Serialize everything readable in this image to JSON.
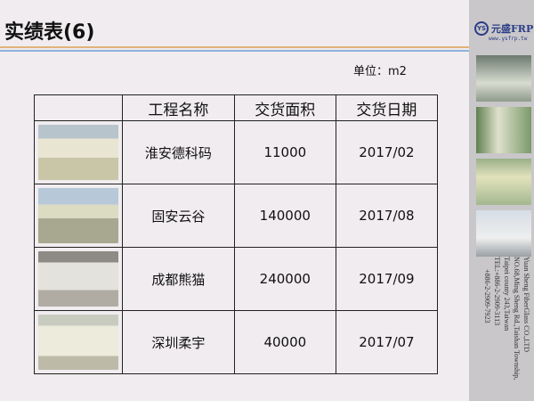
{
  "title": "实绩表(6)",
  "unit": "单位：m2",
  "table": {
    "headers": [
      "",
      "工程名称",
      "交货面积",
      "交货日期"
    ],
    "rows": [
      {
        "name": "淮安德科码",
        "area": "11000",
        "date": "2017/02"
      },
      {
        "name": "固安云谷",
        "area": "140000",
        "date": "2017/08"
      },
      {
        "name": "成都熊猫",
        "area": "240000",
        "date": "2017/09"
      },
      {
        "name": "深圳柔宇",
        "area": "40000",
        "date": "2017/07"
      }
    ]
  },
  "sidebar": {
    "logo_mark": "YS",
    "brand": "元盛FRP",
    "website": "www.ysfrp.tw",
    "address": [
      "Yuan Sheng FiberGlass CO.,LTD",
      "NO.68,Ming Sheng Rd.,Taishan Township,",
      "Taipei county 243,Taiwan",
      "TEL:+886-2-2909-3113",
      "+886-2-2909-7923"
    ]
  },
  "colors": {
    "accent_orange": "#e2b478",
    "accent_blue": "#8fb0dc",
    "brand": "#2a3c86"
  }
}
